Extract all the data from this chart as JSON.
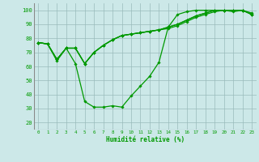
{
  "xlabel": "Humidité relative (%)",
  "background_color": "#cce8e8",
  "grid_color": "#99bbbb",
  "line_color": "#009900",
  "marker": "D",
  "markersize": 1.8,
  "linewidth": 0.9,
  "xlim": [
    -0.5,
    23.5
  ],
  "ylim": [
    15,
    105
  ],
  "yticks": [
    20,
    30,
    40,
    50,
    60,
    70,
    80,
    90,
    100
  ],
  "xticks": [
    0,
    1,
    2,
    3,
    4,
    5,
    6,
    7,
    8,
    9,
    10,
    11,
    12,
    13,
    14,
    15,
    16,
    17,
    18,
    19,
    20,
    21,
    22,
    23
  ],
  "series": [
    [
      77,
      76,
      64,
      73,
      62,
      35,
      31,
      31,
      32,
      31,
      39,
      46,
      53,
      63,
      88,
      97,
      99,
      100,
      100,
      100,
      100,
      100,
      100,
      98
    ],
    [
      77,
      76,
      65,
      73,
      73,
      62,
      70,
      75,
      79,
      82,
      83,
      84,
      85,
      86,
      87,
      89,
      92,
      95,
      97,
      99,
      100,
      99,
      100,
      97
    ],
    [
      77,
      76,
      65,
      73,
      73,
      62,
      70,
      75,
      79,
      82,
      83,
      84,
      85,
      86,
      88,
      90,
      93,
      96,
      98,
      100,
      100,
      100,
      100,
      97
    ],
    [
      77,
      76,
      65,
      73,
      73,
      62,
      70,
      75,
      79,
      82,
      83,
      84,
      85,
      86,
      88,
      90,
      93,
      96,
      98,
      100,
      100,
      100,
      100,
      97
    ]
  ]
}
